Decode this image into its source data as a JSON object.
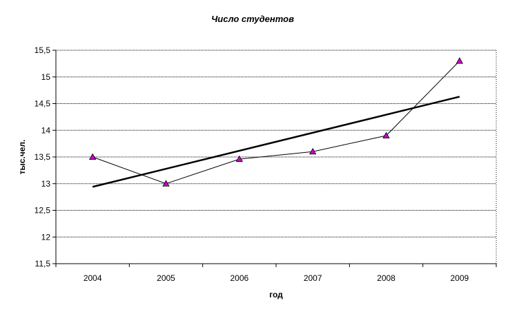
{
  "chart_data": {
    "type": "line",
    "title": "Число студентов",
    "xlabel": "год",
    "ylabel": "тыс.чел.",
    "categories": [
      "2004",
      "2005",
      "2006",
      "2007",
      "2008",
      "2009"
    ],
    "ylim": [
      11.5,
      15.5
    ],
    "y_ticks": [
      "11,5",
      "12",
      "12,5",
      "13",
      "13,5",
      "14",
      "14,5",
      "15",
      "15,5"
    ],
    "grid": true,
    "legend": "none",
    "series": [
      {
        "values": [
          13.5,
          13.0,
          13.46,
          13.6,
          13.9,
          15.3
        ],
        "marker": "triangle",
        "color": "#000000",
        "marker_color": "#cc00cc"
      }
    ],
    "trendline": {
      "type": "linear",
      "start": 12.94,
      "end": 14.63,
      "color": "#000000"
    }
  }
}
